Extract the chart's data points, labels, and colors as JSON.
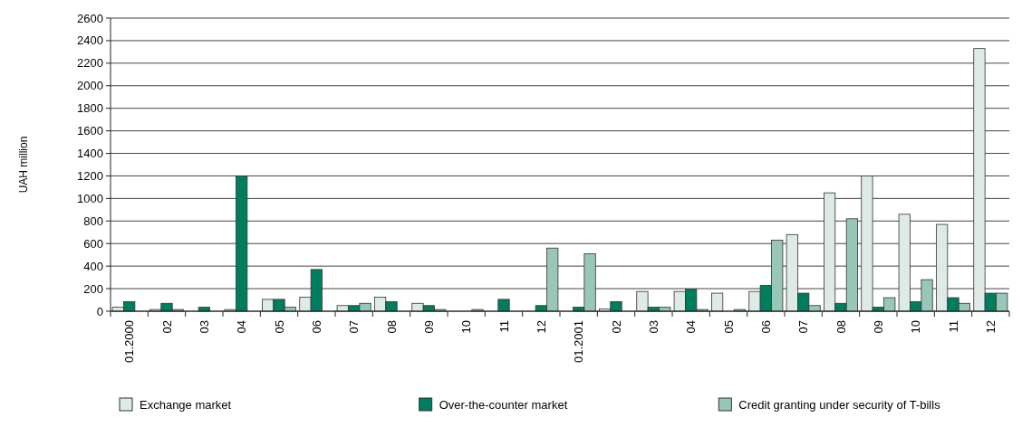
{
  "chart_data": {
    "type": "bar",
    "ylabel": "UAH million",
    "categories": [
      "01.2000",
      "02",
      "03",
      "04",
      "05",
      "06",
      "07",
      "08",
      "09",
      "10",
      "11",
      "12",
      "01.2001",
      "02",
      "03",
      "04",
      "05",
      "06",
      "07",
      "08",
      "09",
      "10",
      "11",
      "12"
    ],
    "series": [
      {
        "name": "Exchange market",
        "color": "#ddeae6",
        "values": [
          35,
          15,
          0,
          15,
          105,
          125,
          50,
          125,
          70,
          0,
          0,
          0,
          0,
          20,
          175,
          175,
          160,
          175,
          680,
          1050,
          1200,
          860,
          770,
          2330
        ]
      },
      {
        "name": "Over-the-counter market",
        "color": "#007d5e",
        "values": [
          85,
          70,
          35,
          1200,
          105,
          370,
          50,
          85,
          50,
          0,
          105,
          50,
          35,
          85,
          35,
          195,
          0,
          230,
          160,
          70,
          35,
          85,
          120,
          160
        ]
      },
      {
        "name": "Credit granting under security of T-bills",
        "color": "#98c6b8",
        "values": [
          0,
          15,
          0,
          0,
          35,
          0,
          70,
          0,
          15,
          15,
          0,
          560,
          510,
          0,
          35,
          15,
          15,
          630,
          50,
          820,
          120,
          280,
          70,
          160
        ]
      }
    ],
    "ylim": [
      0,
      2600
    ],
    "yticks": [
      0,
      200,
      400,
      600,
      800,
      1000,
      1200,
      1400,
      1600,
      1800,
      2000,
      2200,
      2400,
      2600
    ],
    "grid": "y",
    "legend": "bottom"
  }
}
